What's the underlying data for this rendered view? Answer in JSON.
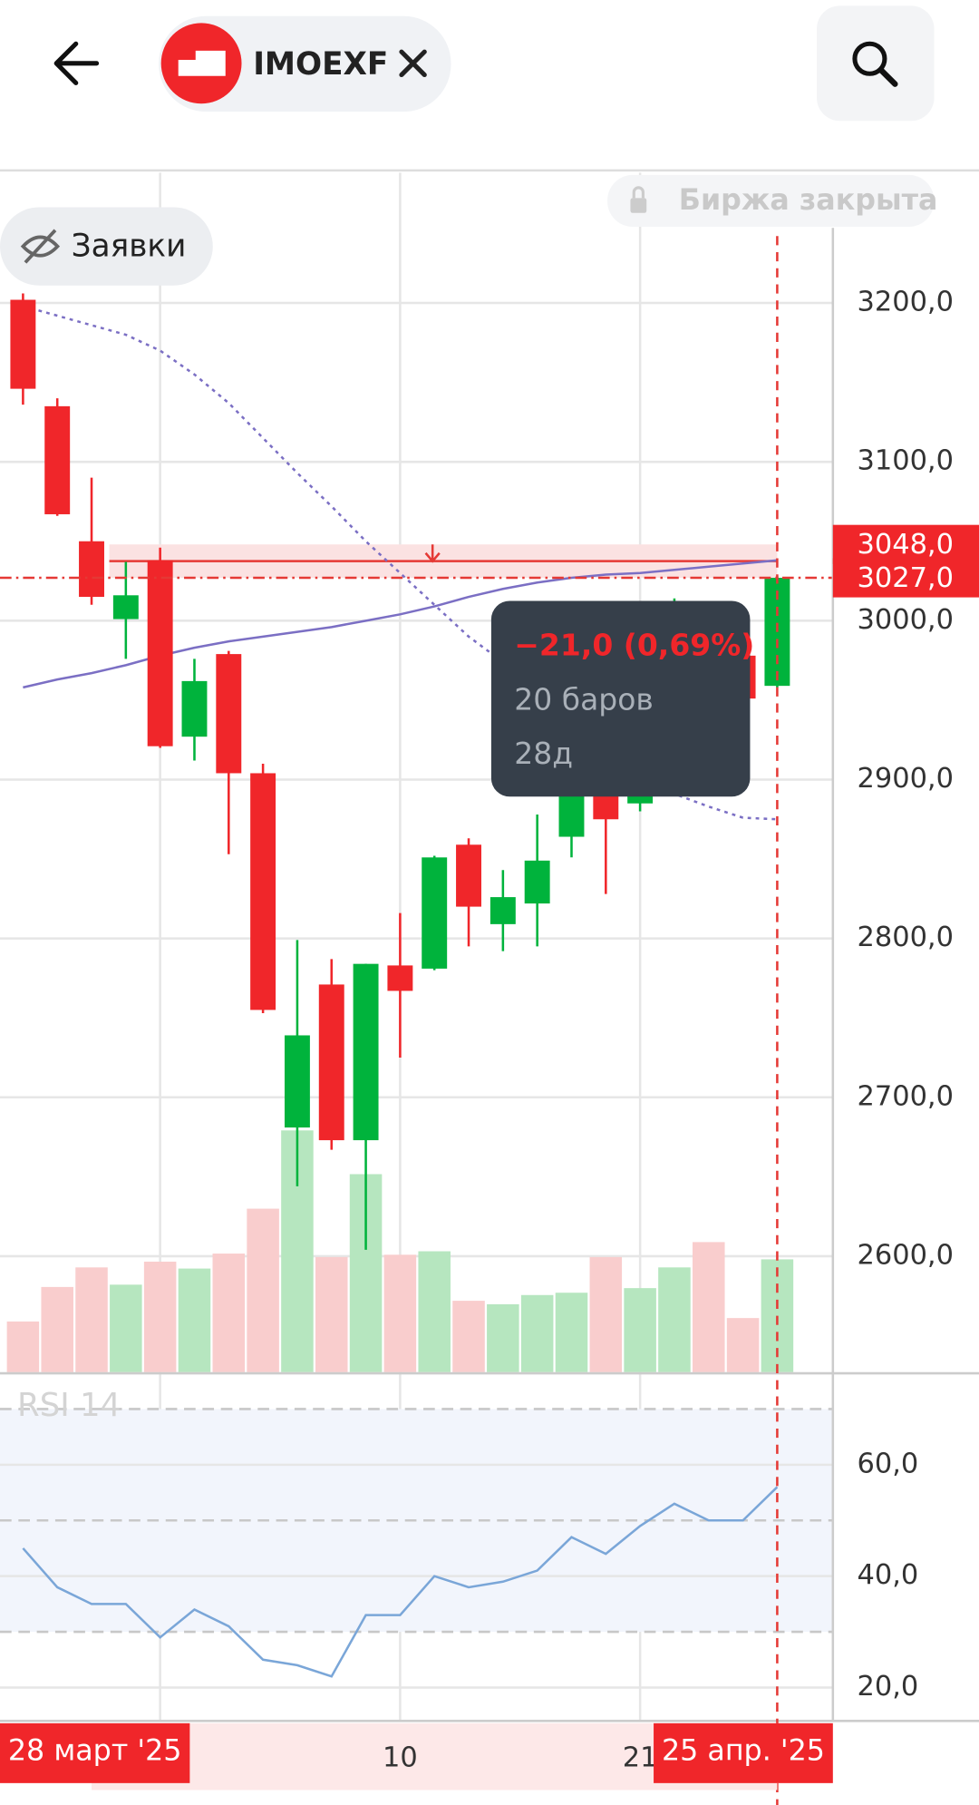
{
  "header": {
    "ticker": "IMOEXF"
  },
  "status": "Биржа закрыта",
  "orders": "Заявки",
  "chart_data": {
    "type": "candlestick",
    "categories": [
      null,
      null,
      "28 март '25",
      null,
      null,
      null,
      null,
      null,
      null,
      null,
      null,
      "10",
      null,
      null,
      null,
      null,
      null,
      null,
      "21",
      null,
      null,
      null,
      "25 апр. '25"
    ],
    "highlight": [
      2,
      22
    ],
    "xgrid": [
      4,
      11,
      18
    ],
    "open": [
      3202,
      3135,
      3050,
      3001,
      3038,
      2927,
      2979,
      2904,
      2681,
      2771,
      2673,
      2783,
      2781,
      2859,
      2809,
      2822,
      2864,
      2891,
      2885,
      2960,
      3005,
      2978,
      2959
    ],
    "high": [
      3206,
      3140,
      3090,
      3037,
      3046,
      2976,
      2981,
      2910,
      2799,
      2787,
      2784,
      2816,
      2852,
      2863,
      2843,
      2878,
      2898,
      2912,
      2975,
      3014,
      3010,
      2985,
      3028
    ],
    "low": [
      3136,
      3066,
      3010,
      2976,
      2920,
      2912,
      2853,
      2753,
      2644,
      2667,
      2604,
      2725,
      2780,
      2795,
      2792,
      2795,
      2851,
      2828,
      2880,
      2955,
      2970,
      2948,
      2958
    ],
    "close": [
      3146,
      3067,
      3015,
      3016,
      2921,
      2962,
      2904,
      2755,
      2739,
      2673,
      2784,
      2767,
      2851,
      2820,
      2826,
      2849,
      2891,
      2875,
      2960,
      3005,
      2975,
      2951,
      3027
    ],
    "volume": [
      44,
      74,
      91,
      76,
      96,
      90,
      103,
      142,
      210,
      100,
      172,
      102,
      105,
      62,
      59,
      67,
      69,
      100,
      73,
      91,
      113,
      47,
      98
    ],
    "up_color": "#00b33c",
    "down_color": "#f0262a",
    "ylim": [
      2527,
      3282
    ],
    "yticks": [
      {
        "value": 2600,
        "label": "2600,0"
      },
      {
        "value": 2700,
        "label": "2700,0"
      },
      {
        "value": 2800,
        "label": "2800,0"
      },
      {
        "value": 2900,
        "label": "2900,0"
      },
      {
        "value": 3000,
        "label": "3000,0"
      },
      {
        "value": 3100,
        "label": "3100,0"
      },
      {
        "value": 3200,
        "label": "3200,0"
      }
    ],
    "price_labels": [
      {
        "value": 3048,
        "label": "3048,0"
      },
      {
        "value": 3027,
        "label": "3027,0"
      }
    ],
    "moving_averages": [
      {
        "color": "#7b6fc4",
        "dashed": true,
        "values": [
          3198,
          3192,
          3186,
          3180,
          3170,
          3155,
          3137,
          3115,
          3093,
          3072,
          3050,
          3030,
          3010,
          2990,
          2974,
          2958,
          2941,
          2925,
          2908,
          2891,
          2883,
          2876,
          2875
        ]
      },
      {
        "color": "#7b6fc4",
        "dashed": false,
        "values": [
          2958,
          2963,
          2967,
          2972,
          2978,
          2983,
          2987,
          2990,
          2993,
          2996,
          3000,
          3004,
          3009,
          3015,
          3020,
          3024,
          3027,
          3029,
          3030,
          3032,
          3034,
          3036,
          3038
        ]
      }
    ],
    "rsi": {
      "title": "RSI 14",
      "color": "#7aa6d8",
      "values": [
        45,
        38,
        35,
        35,
        29,
        34,
        31,
        25,
        24,
        22,
        33,
        33,
        40,
        38,
        39,
        41,
        47,
        44,
        49,
        53,
        50,
        50,
        56
      ],
      "ylim": [
        14,
        76
      ],
      "yticks": [
        {
          "value": 20,
          "label": "20,0"
        },
        {
          "value": 40,
          "label": "40,0"
        },
        {
          "value": 60,
          "label": "60,0"
        }
      ],
      "levels": [
        30,
        50,
        70
      ]
    },
    "tooltip": {
      "change": "−21,0 (0,69%)",
      "bars": "20 баров",
      "duration": "28д"
    }
  }
}
